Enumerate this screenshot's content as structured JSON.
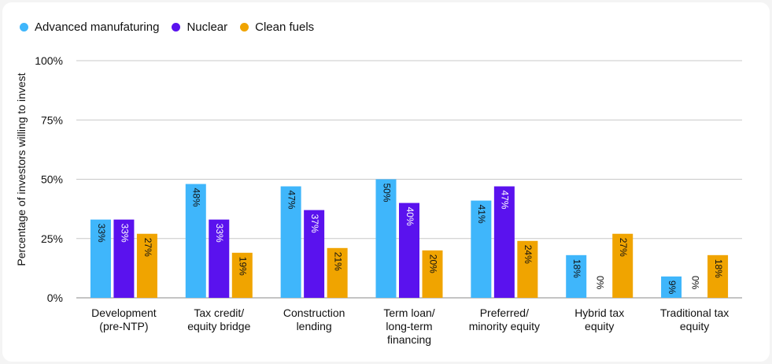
{
  "chart_data": {
    "type": "bar",
    "ylabel": "Percentage of investors willing to invest",
    "ylim": [
      0,
      100
    ],
    "yticks": [
      0,
      25,
      50,
      75,
      100
    ],
    "ytick_labels": [
      "0%",
      "25%",
      "50%",
      "75%",
      "100%"
    ],
    "grid": true,
    "legend_position": "top-left",
    "categories": [
      [
        "Development",
        "(pre-NTP)"
      ],
      [
        "Tax credit/",
        "equity bridge"
      ],
      [
        "Construction",
        "lending"
      ],
      [
        "Term loan/",
        "long-term",
        "financing"
      ],
      [
        "Preferred/",
        "minority equity"
      ],
      [
        "Hybrid tax",
        "equity"
      ],
      [
        "Traditional tax",
        "equity"
      ]
    ],
    "series": [
      {
        "name": "Advanced manufaturing",
        "color": "#3fb6fb",
        "values": [
          33,
          48,
          47,
          50,
          41,
          18,
          9
        ],
        "labels": [
          "33%",
          "48%",
          "47%",
          "50%",
          "41%",
          "18%",
          "9%"
        ]
      },
      {
        "name": "Nuclear",
        "color": "#5a12ee",
        "values": [
          33,
          33,
          37,
          40,
          47,
          0,
          0
        ],
        "labels": [
          "33%",
          "33%",
          "37%",
          "40%",
          "47%",
          "0%",
          "0%"
        ]
      },
      {
        "name": "Clean fuels",
        "color": "#f0a400",
        "values": [
          27,
          19,
          21,
          20,
          24,
          27,
          18
        ],
        "labels": [
          "27%",
          "19%",
          "21%",
          "20%",
          "24%",
          "27%",
          "18%"
        ]
      }
    ]
  }
}
